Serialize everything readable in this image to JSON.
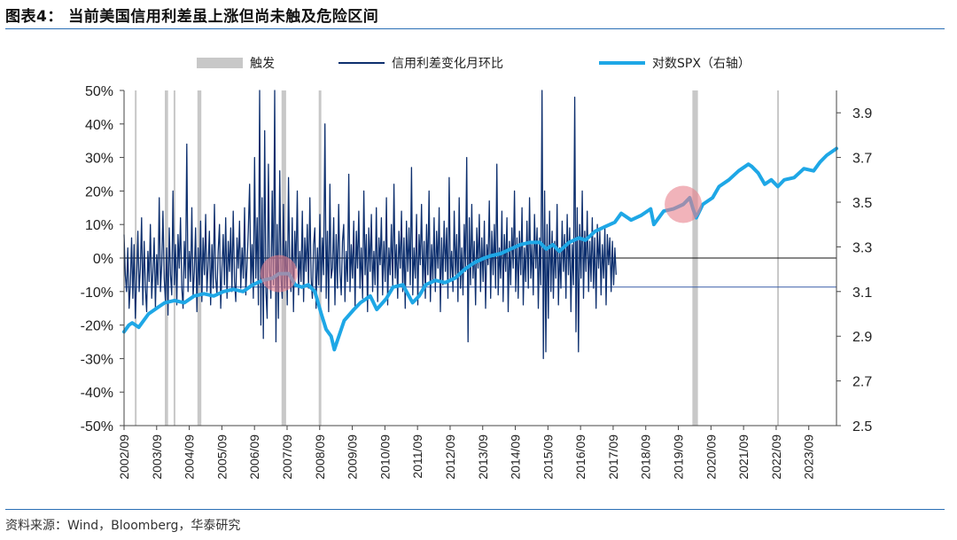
{
  "header": {
    "title": "图表4：  当前美国信用利差虽上涨但尚未触及危险区间"
  },
  "footer": {
    "source": "资料来源：Wind，Bloomberg，华泰研究"
  },
  "colors": {
    "shade": "#c8c8c8",
    "spread": "#0d2f6e",
    "spx": "#1ea7e6",
    "highlight": "#e8808c",
    "rule": "#2a6eb5"
  },
  "chart_data": {
    "type": "line",
    "title": "",
    "legend": [
      {
        "key": "trigger",
        "label": "触发",
        "style": "bar"
      },
      {
        "key": "spread",
        "label": "信用利差变化月环比",
        "style": "thin-line"
      },
      {
        "key": "spx",
        "label": "对数SPX（右轴）",
        "style": "thick-line"
      }
    ],
    "legend_position": "top",
    "left_axis": {
      "min": -50,
      "max": 50,
      "ticks": [
        50,
        40,
        30,
        20,
        10,
        0,
        -10,
        -20,
        -30,
        -40,
        -50
      ],
      "tick_labels": [
        "50%",
        "40%",
        "30%",
        "20%",
        "10%",
        "0%",
        "-10%",
        "-20%",
        "-30%",
        "-40%",
        "-50%"
      ]
    },
    "right_axis": {
      "min": 2.5,
      "max": 4.0,
      "ticks": [
        3.9,
        3.7,
        3.5,
        3.3,
        3.1,
        2.9,
        2.7,
        2.5
      ],
      "tick_labels": [
        "3.9",
        "3.7",
        "3.5",
        "3.3",
        "3.1",
        "2.9",
        "2.7",
        "2.5"
      ]
    },
    "x_axis": {
      "start": 2002.75,
      "end": 2024.6,
      "tick_labels": [
        "2002/09",
        "2003/09",
        "2004/09",
        "2005/09",
        "2006/09",
        "2007/09",
        "2008/09",
        "2009/09",
        "2010/09",
        "2011/09",
        "2012/09",
        "2013/09",
        "2014/09",
        "2015/09",
        "2016/09",
        "2017/09",
        "2018/09",
        "2019/09",
        "2020/09",
        "2021/09",
        "2022/09",
        "2023/09"
      ]
    },
    "reference_line_right": 3.12,
    "trigger_periods": [
      [
        2003.08,
        2003.12
      ],
      [
        2004.0,
        2004.1
      ],
      [
        2004.27,
        2004.31
      ],
      [
        2005.0,
        2005.12
      ],
      [
        2007.58,
        2007.72
      ],
      [
        2008.72,
        2008.8
      ],
      [
        2020.18,
        2020.35
      ],
      [
        2022.78,
        2022.82
      ]
    ],
    "highlights": [
      {
        "x": 2007.5,
        "y_right": 3.18
      },
      {
        "x": 2019.9,
        "y_right": 3.49
      }
    ],
    "spx_log": {
      "x": [
        2002.75,
        2002.9,
        2003.0,
        2003.2,
        2003.5,
        2003.8,
        2004.0,
        2004.3,
        2004.6,
        2004.9,
        2005.2,
        2005.5,
        2005.8,
        2006.1,
        2006.4,
        2006.7,
        2007.0,
        2007.3,
        2007.5,
        2007.8,
        2008.0,
        2008.2,
        2008.4,
        2008.6,
        2008.8,
        2008.95,
        2009.1,
        2009.2,
        2009.5,
        2009.8,
        2010.0,
        2010.3,
        2010.5,
        2010.8,
        2011.0,
        2011.3,
        2011.6,
        2011.8,
        2012.0,
        2012.3,
        2012.6,
        2012.9,
        2013.2,
        2013.5,
        2013.8,
        2014.0,
        2014.3,
        2014.6,
        2014.9,
        2015.2,
        2015.5,
        2015.7,
        2015.9,
        2016.1,
        2016.4,
        2016.7,
        2016.9,
        2017.2,
        2017.5,
        2017.8,
        2018.0,
        2018.3,
        2018.6,
        2018.9,
        2019.0,
        2019.3,
        2019.6,
        2019.9,
        2020.1,
        2020.2,
        2020.3,
        2020.5,
        2020.8,
        2021.0,
        2021.3,
        2021.6,
        2021.9,
        2022.0,
        2022.2,
        2022.4,
        2022.6,
        2022.8,
        2023.0,
        2023.3,
        2023.6,
        2023.9,
        2024.1,
        2024.3,
        2024.6
      ],
      "y": [
        2.92,
        2.95,
        2.96,
        2.94,
        3.0,
        3.03,
        3.05,
        3.06,
        3.05,
        3.08,
        3.09,
        3.08,
        3.1,
        3.11,
        3.1,
        3.13,
        3.15,
        3.16,
        3.18,
        3.18,
        3.13,
        3.12,
        3.13,
        3.1,
        3.0,
        2.93,
        2.9,
        2.84,
        2.97,
        3.02,
        3.05,
        3.08,
        3.02,
        3.07,
        3.12,
        3.13,
        3.05,
        3.08,
        3.13,
        3.15,
        3.14,
        3.16,
        3.2,
        3.23,
        3.25,
        3.26,
        3.27,
        3.29,
        3.31,
        3.32,
        3.32,
        3.29,
        3.31,
        3.28,
        3.32,
        3.34,
        3.33,
        3.37,
        3.39,
        3.41,
        3.45,
        3.42,
        3.44,
        3.47,
        3.4,
        3.46,
        3.47,
        3.49,
        3.52,
        3.47,
        3.43,
        3.49,
        3.52,
        3.57,
        3.6,
        3.64,
        3.67,
        3.66,
        3.63,
        3.58,
        3.6,
        3.57,
        3.6,
        3.61,
        3.65,
        3.64,
        3.68,
        3.71,
        3.74
      ]
    },
    "spread_mom": {
      "x_start": 2002.75,
      "x_step": 0.0385,
      "values": [
        7,
        -5,
        -10,
        3,
        -15,
        -8,
        6,
        -12,
        4,
        -18,
        -6,
        8,
        -10,
        -3,
        12,
        -14,
        5,
        -9,
        -16,
        2,
        -7,
        10,
        -12,
        -4,
        6,
        -15,
        1,
        -8,
        18,
        -10,
        -2,
        14,
        -6,
        -13,
        3,
        -17,
        9,
        -5,
        -11,
        20,
        -8,
        4,
        -14,
        7,
        -3,
        12,
        -9,
        -15,
        5,
        -6,
        34,
        -10,
        2,
        -7,
        15,
        -12,
        -4,
        9,
        -16,
        3,
        -8,
        11,
        -13,
        6,
        -5,
        13,
        -10,
        -2,
        8,
        -14,
        4,
        -9,
        16,
        -6,
        -11,
        2,
        10,
        -15,
        -3,
        7,
        -8,
        12,
        -12,
        5,
        -4,
        9,
        -10,
        14,
        -7,
        -13,
        6,
        -3,
        11,
        -9,
        3,
        -6,
        15,
        -11,
        -2,
        8,
        22,
        -8,
        4,
        -12,
        30,
        -6,
        12,
        -14,
        52,
        -20,
        18,
        -24,
        38,
        -10,
        -18,
        28,
        -4,
        -12,
        20,
        -8,
        52,
        -25,
        10,
        -18,
        26,
        -6,
        -12,
        16,
        -9,
        5,
        -14,
        24,
        -5,
        -10,
        12,
        -16,
        8,
        -3,
        20,
        -11,
        2,
        -7,
        14,
        -13,
        6,
        -4,
        10,
        -9,
        18,
        -6,
        -12,
        4,
        9,
        -15,
        3,
        -8,
        13,
        -10,
        6,
        -5,
        40,
        -12,
        8,
        -16,
        22,
        -6,
        -3,
        12,
        -14,
        7,
        -9,
        16,
        -4,
        -11,
        5,
        10,
        -13,
        2,
        -7,
        25,
        -10,
        4,
        -6,
        11,
        -15,
        8,
        -3,
        14,
        -9,
        3,
        -12,
        20,
        -5,
        7,
        -16,
        9,
        -4,
        13,
        -10,
        2,
        -8,
        15,
        -13,
        6,
        -2,
        12,
        -11,
        5,
        -7,
        18,
        -14,
        3,
        -5,
        10,
        -9,
        22,
        -6,
        4,
        -12,
        8,
        -3,
        14,
        -10,
        6,
        -15,
        11,
        -4,
        9,
        -8,
        27,
        -11,
        3,
        -6,
        13,
        -14,
        7,
        -2,
        16,
        -9,
        5,
        -12,
        10,
        -5,
        20,
        -13,
        4,
        -7,
        12,
        -10,
        8,
        -3,
        15,
        -16,
        6,
        -8,
        11,
        -4,
        9,
        -12,
        24,
        -6,
        2,
        -10,
        14,
        -5,
        7,
        -13,
        18,
        -9,
        3,
        -11,
        10,
        -4,
        30,
        -25,
        12,
        -8,
        16,
        -6,
        5,
        -14,
        9,
        -3,
        13,
        -10,
        6,
        -7,
        11,
        -15,
        4,
        -2,
        17,
        -12,
        8,
        -5,
        10,
        -9,
        28,
        -11,
        3,
        -6,
        14,
        -13,
        7,
        -4,
        12,
        -16,
        5,
        -8,
        9,
        -3,
        20,
        -10,
        6,
        -12,
        8,
        -5,
        15,
        -14,
        3,
        -7,
        11,
        -9,
        18,
        -6,
        4,
        -11,
        13,
        -3,
        9,
        -15,
        6,
        -8,
        52,
        -30,
        20,
        -28,
        10,
        -18,
        14,
        -10,
        8,
        -12,
        5,
        -6,
        16,
        -14,
        3,
        -9,
        11,
        -4,
        7,
        -12,
        13,
        -5,
        9,
        -16,
        4,
        -8,
        48,
        -22,
        15,
        -28,
        10,
        -6,
        20,
        -12,
        8,
        -4,
        14,
        -10,
        5,
        -7,
        12,
        -9,
        6,
        -15,
        10,
        -3,
        8,
        -11,
        4,
        -6,
        9,
        -14,
        7,
        -2,
        6,
        -10,
        5,
        -8,
        3,
        -5
      ]
    }
  }
}
